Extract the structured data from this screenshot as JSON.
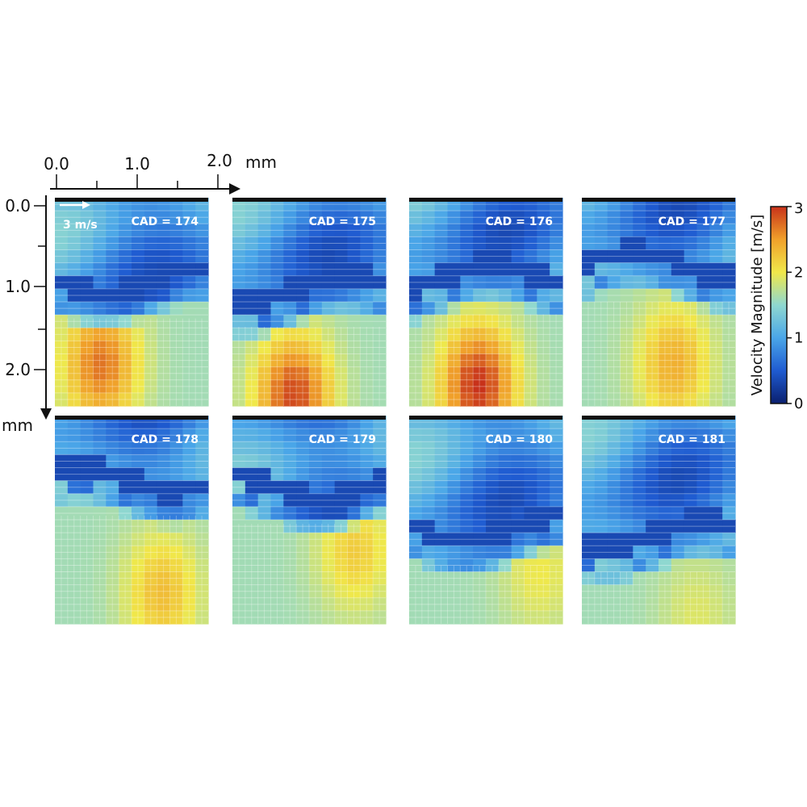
{
  "chart_data": {
    "type": "heatmap",
    "title": "",
    "x_axis": {
      "ticks": [
        "0.0",
        "1.0",
        "2.0"
      ],
      "unit": "mm",
      "range": [
        0,
        2.0
      ]
    },
    "y_axis": {
      "ticks": [
        "0.0",
        "1.0",
        "2.0"
      ],
      "unit": "mm",
      "range": [
        0,
        2.4
      ],
      "direction": "down"
    },
    "reference_vector_label": "3 m/s",
    "colorbar": {
      "label": "Velocity Magnitude [m/s]",
      "ticks": [
        "0",
        "1",
        "2",
        "3"
      ],
      "range": [
        0,
        3
      ],
      "stops": [
        "#0a1f6e",
        "#1f5bd1",
        "#4aa6e8",
        "#8fd8d0",
        "#f0e84a",
        "#f0a02a",
        "#c8321a"
      ]
    },
    "panels": [
      {
        "label": "CAD = 174",
        "front_y": 0.58,
        "hot_x": 0.3,
        "hot_y": 0.8,
        "peak": 2.7
      },
      {
        "label": "CAD = 175",
        "front_y": 0.62,
        "hot_x": 0.4,
        "hot_y": 0.95,
        "peak": 2.9
      },
      {
        "label": "CAD = 176",
        "front_y": 0.56,
        "hot_x": 0.45,
        "hot_y": 0.9,
        "peak": 3.0
      },
      {
        "label": "CAD = 177",
        "front_y": 0.5,
        "hot_x": 0.6,
        "hot_y": 0.8,
        "peak": 2.4
      },
      {
        "label": "CAD = 178",
        "front_y": 0.48,
        "hot_x": 0.7,
        "hot_y": 0.85,
        "peak": 2.3
      },
      {
        "label": "CAD = 179",
        "front_y": 0.52,
        "hot_x": 0.8,
        "hot_y": 0.65,
        "peak": 2.2
      },
      {
        "label": "CAD = 180",
        "front_y": 0.72,
        "hot_x": 0.85,
        "hot_y": 0.75,
        "peak": 2.0
      },
      {
        "label": "CAD = 181",
        "front_y": 0.75,
        "hot_x": 0.75,
        "hot_y": 0.95,
        "peak": 1.9
      }
    ]
  }
}
